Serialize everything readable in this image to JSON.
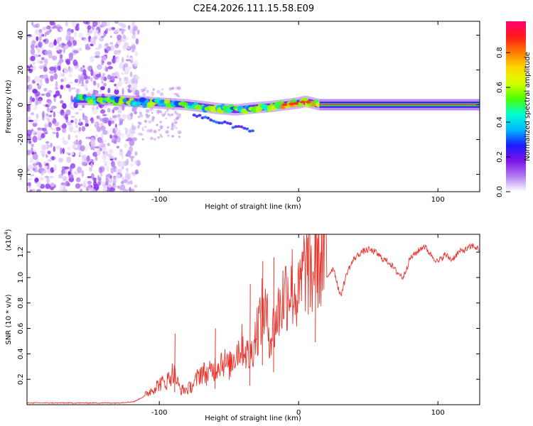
{
  "title": "C2E4.2026.111.15.58.E09",
  "chart_data": [
    {
      "type": "heatmap",
      "panel": "spectrogram",
      "xlabel": "Height of straight line (km)",
      "ylabel": "Frequency (Hz)",
      "xlim": [
        -195,
        130
      ],
      "ylim": [
        -50,
        48
      ],
      "x_ticks": [
        -100,
        0,
        100
      ],
      "x_tick_labels": [
        "-100",
        "0",
        "100"
      ],
      "y_ticks": [
        -40,
        -20,
        0,
        20,
        40
      ],
      "y_tick_labels": [
        "-40",
        "-20",
        "0",
        "20",
        "40"
      ],
      "noise_region_x": [
        -195,
        -115
      ],
      "signal_track": {
        "x": [
          -160,
          -140,
          -120,
          -100,
          -80,
          -60,
          -45,
          -35,
          -20,
          -10,
          0,
          5,
          15,
          130
        ],
        "freq": [
          3,
          3,
          2,
          1,
          0,
          -2,
          -3,
          -2,
          -1,
          0,
          1,
          2,
          0,
          0
        ]
      },
      "colorbar": {
        "label": "Normalized spectral amplitude",
        "range": [
          0.0,
          0.98
        ],
        "ticks": [
          0.0,
          0.2,
          0.4,
          0.6,
          0.8
        ],
        "tick_labels": [
          "0.0",
          "0.2",
          "0.4",
          "0.6",
          "0.8"
        ],
        "colors": [
          "#ffffff",
          "#b07cf0",
          "#7b12e8",
          "#1b1cff",
          "#00b8ff",
          "#00ffd0",
          "#4cff00",
          "#d8ff00",
          "#ffd800",
          "#ff7a00",
          "#ff1a1a",
          "#ff0070"
        ]
      }
    },
    {
      "type": "line",
      "panel": "snr",
      "xlabel": "Height of straight line (km)",
      "ylabel": "SNR (10 * v/v)",
      "y_multiplier": "(x10",
      "y_multiplier_exp": "4",
      "y_multiplier_close": ")",
      "xlim": [
        -195,
        130
      ],
      "ylim": [
        0,
        1.34
      ],
      "x_ticks": [
        -100,
        0,
        100
      ],
      "x_tick_labels": [
        "-100",
        "0",
        "100"
      ],
      "y_ticks": [
        0.2,
        0.4,
        0.6,
        0.8,
        1.0,
        1.2
      ],
      "y_tick_labels": [
        "0.2",
        "0.4",
        "0.6",
        "0.8",
        "1.0",
        "1.2"
      ],
      "line_color": "#e8372f",
      "series": [
        {
          "name": "SNR",
          "x": [
            -195,
            -170,
            -150,
            -130,
            -118,
            -108,
            -100,
            -95,
            -90,
            -85,
            -80,
            -75,
            -70,
            -65,
            -60,
            -55,
            -50,
            -45,
            -40,
            -35,
            -30,
            -25,
            -20,
            -15,
            -10,
            -5,
            0,
            5,
            10,
            13,
            15,
            20,
            25,
            30,
            35,
            40,
            45,
            50,
            55,
            60,
            65,
            70,
            75,
            80,
            85,
            90,
            95,
            100,
            105,
            110,
            115,
            120,
            125,
            130
          ],
          "y": [
            0.01,
            0.01,
            0.01,
            0.01,
            0.02,
            0.08,
            0.14,
            0.15,
            0.22,
            0.1,
            0.1,
            0.14,
            0.22,
            0.2,
            0.25,
            0.3,
            0.25,
            0.35,
            0.4,
            0.3,
            0.5,
            0.65,
            0.45,
            0.6,
            0.75,
            0.8,
            0.7,
            0.95,
            0.85,
            1.05,
            0.95,
            1.0,
            1.08,
            0.85,
            1.05,
            1.15,
            1.2,
            1.22,
            1.2,
            1.15,
            1.12,
            1.05,
            1.0,
            1.15,
            1.2,
            1.25,
            1.18,
            1.12,
            1.18,
            1.14,
            1.2,
            1.22,
            1.25,
            1.22
          ]
        }
      ],
      "spikes": [
        {
          "x": -89,
          "y": 0.56
        },
        {
          "x": -60,
          "y": 0.6
        },
        {
          "x": -35,
          "y": 0.95
        },
        {
          "x": -26,
          "y": 1.13
        },
        {
          "x": -18,
          "y": 1.16
        },
        {
          "x": 12,
          "y": 1.32
        }
      ]
    }
  ]
}
